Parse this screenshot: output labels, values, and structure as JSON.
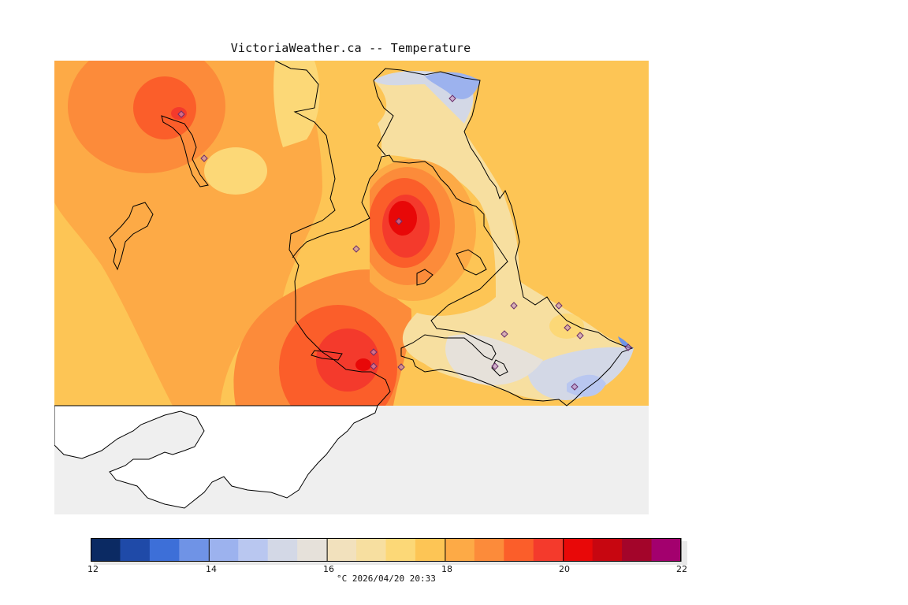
{
  "title": "VictoriaWeather.ca -- Temperature",
  "colors": {
    "sea": "#efefef",
    "land_outside": "#ffffff",
    "coast": "#000000",
    "station": "#8a4f8a"
  },
  "legend": {
    "min": 12,
    "max": 22,
    "ticks": [
      "12",
      "14",
      "16",
      "18",
      "20",
      "22"
    ],
    "bins": [
      "#0b2a63",
      "#1f4aa8",
      "#3d6fd8",
      "#6f93e6",
      "#9cb2ee",
      "#b9c7f0",
      "#d3d8e6",
      "#e6e1da",
      "#f2e1bd",
      "#f7dfa0",
      "#fcd877",
      "#fdc555",
      "#fdaa46",
      "#fc8b3a",
      "#fb5e2a",
      "#f43a2c",
      "#e80808",
      "#c70610",
      "#a3052a",
      "#a3006e"
    ],
    "caption": "°C  2026/04/20 20:33"
  }
}
